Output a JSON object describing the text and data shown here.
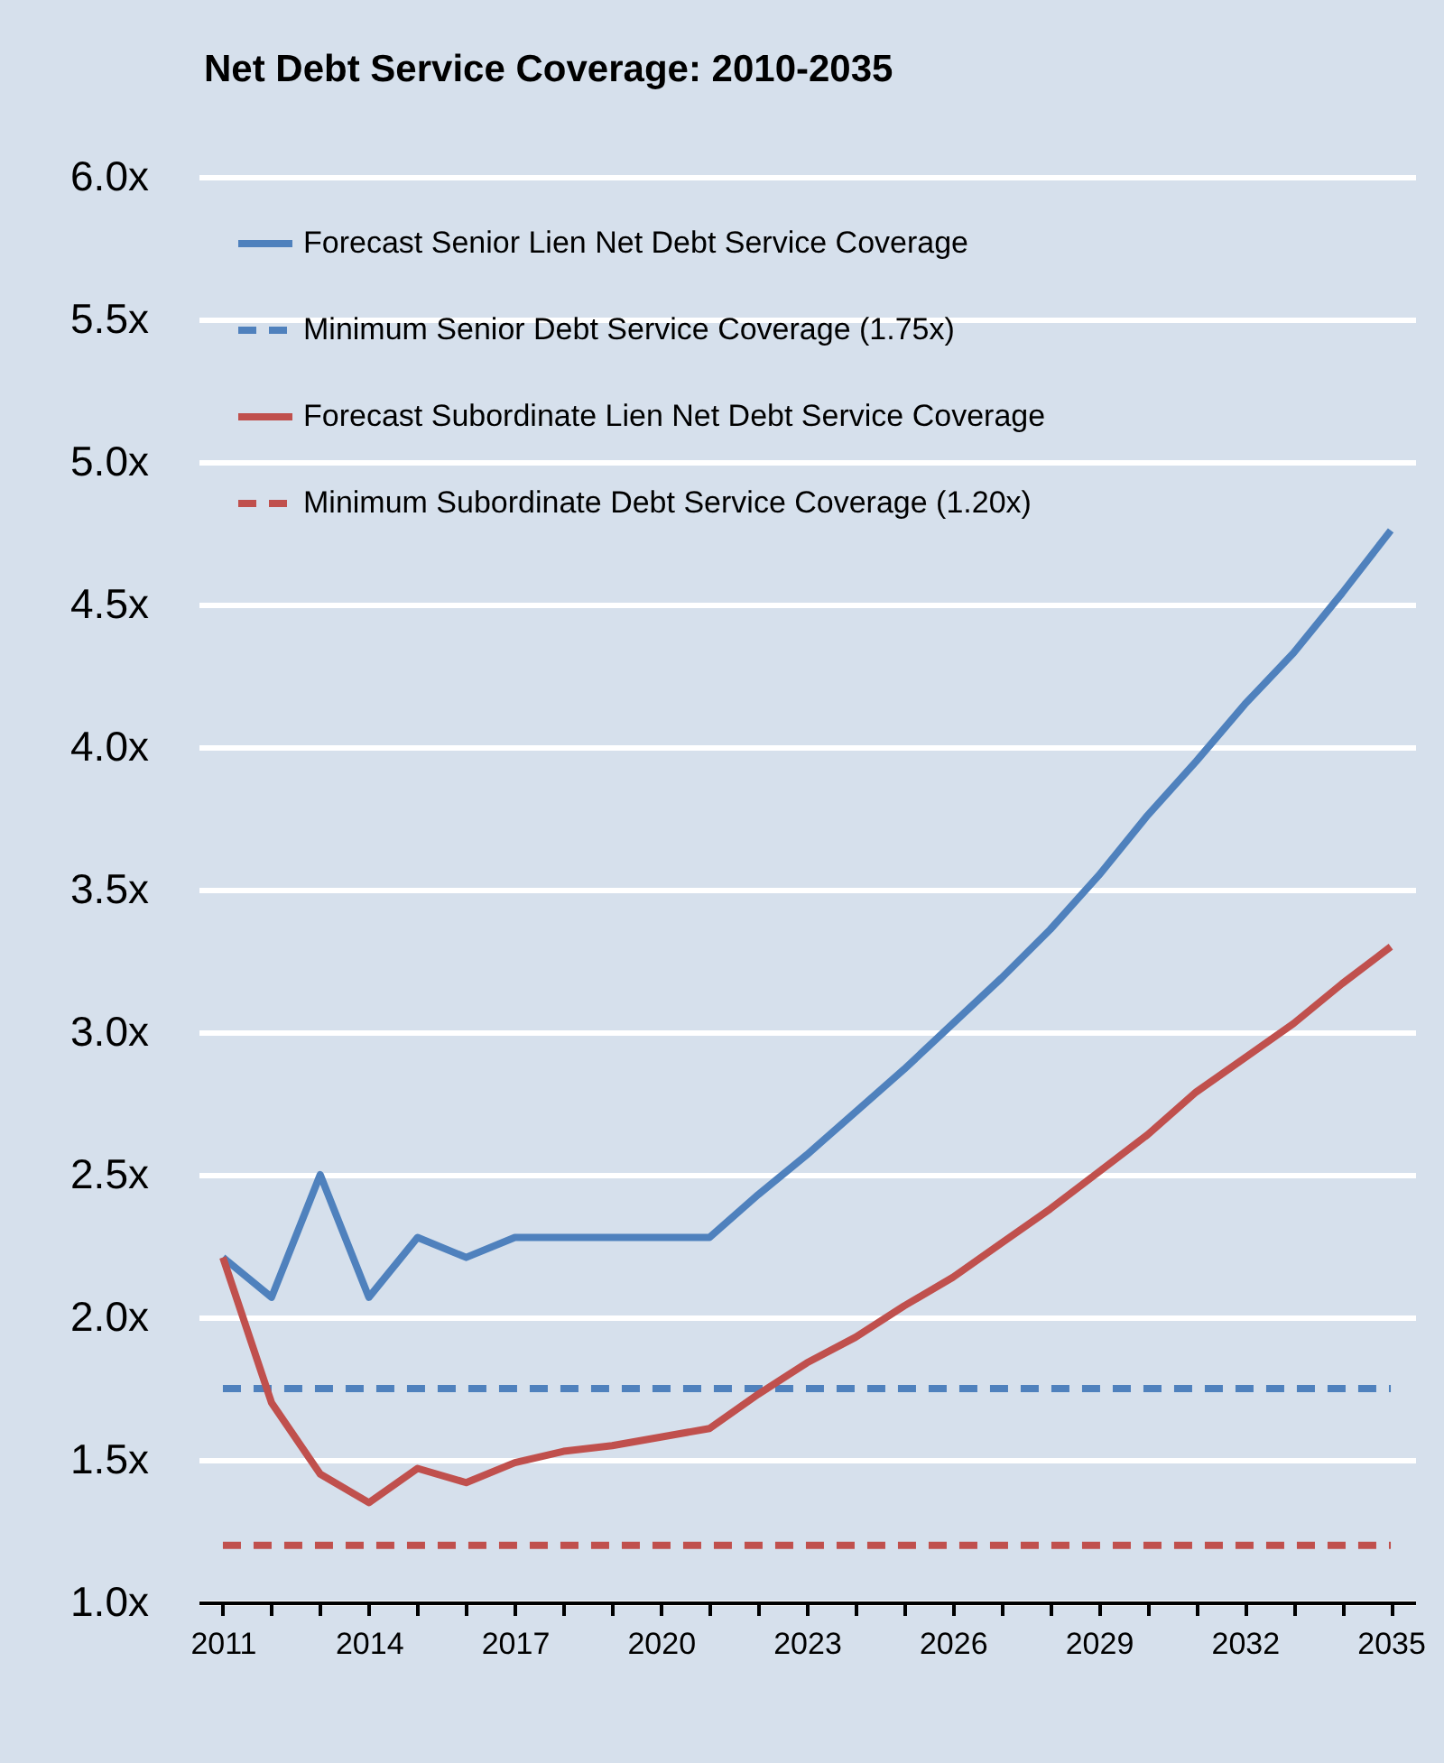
{
  "chart_data": {
    "type": "line",
    "title": "Net Debt Service Coverage: 2010-2035",
    "categories": [
      "2011",
      null,
      null,
      "2014",
      null,
      null,
      "2017",
      null,
      null,
      "2020",
      null,
      null,
      "2023",
      null,
      null,
      "2026",
      null,
      null,
      "2029",
      null,
      null,
      "2032",
      null,
      null,
      "2035"
    ],
    "series": [
      {
        "name": "Forecast Senior Lien Net Debt Service Coverage",
        "color": "#4f81bd",
        "line_style": "solid",
        "values": [
          2.21,
          2.07,
          2.5,
          2.07,
          2.28,
          2.21,
          2.28,
          2.28,
          2.28,
          2.28,
          2.28,
          2.43,
          2.57,
          2.72,
          2.87,
          3.03,
          3.19,
          3.36,
          3.55,
          3.76,
          3.95,
          4.15,
          4.33,
          4.54,
          4.76
        ]
      },
      {
        "name": "Minimum Senior Debt Service Coverage (1.75x)",
        "color": "#4f81bd",
        "line_style": "dashed",
        "values": [
          1.75,
          1.75,
          1.75,
          1.75,
          1.75,
          1.75,
          1.75,
          1.75,
          1.75,
          1.75,
          1.75,
          1.75,
          1.75,
          1.75,
          1.75,
          1.75,
          1.75,
          1.75,
          1.75,
          1.75,
          1.75,
          1.75,
          1.75,
          1.75,
          1.75
        ]
      },
      {
        "name": "Forecast Subordinate Lien Net Debt Service Coverage",
        "color": "#c0504d",
        "line_style": "solid",
        "values": [
          2.21,
          1.7,
          1.45,
          1.35,
          1.47,
          1.42,
          1.49,
          1.53,
          1.55,
          1.58,
          1.61,
          1.73,
          1.84,
          1.93,
          2.04,
          2.14,
          2.26,
          2.38,
          2.51,
          2.64,
          2.79,
          2.91,
          3.03,
          3.17,
          3.3
        ]
      },
      {
        "name": "Minimum Subordinate Debt Service Coverage (1.20x)",
        "color": "#c0504d",
        "line_style": "dashed",
        "values": [
          1.2,
          1.2,
          1.2,
          1.2,
          1.2,
          1.2,
          1.2,
          1.2,
          1.2,
          1.2,
          1.2,
          1.2,
          1.2,
          1.2,
          1.2,
          1.2,
          1.2,
          1.2,
          1.2,
          1.2,
          1.2,
          1.2,
          1.2,
          1.2,
          1.2
        ]
      }
    ],
    "ylim": [
      1,
      6
    ],
    "yticks": [
      {
        "value": 1,
        "label": "1.0x"
      },
      {
        "value": 1.5,
        "label": "1.5x"
      },
      {
        "value": 2,
        "label": "2.0x"
      },
      {
        "value": 2.5,
        "label": "2.5x"
      },
      {
        "value": 3,
        "label": "3.0x"
      },
      {
        "value": 3.5,
        "label": "3.5x"
      },
      {
        "value": 4,
        "label": "4.0x"
      },
      {
        "value": 4.5,
        "label": "4.5x"
      },
      {
        "value": 5,
        "label": "5.0x"
      },
      {
        "value": 5.5,
        "label": "5.5x"
      },
      {
        "value": 6,
        "label": "6.0x"
      }
    ],
    "grid": "y",
    "legend": "top left",
    "marker": "none"
  }
}
